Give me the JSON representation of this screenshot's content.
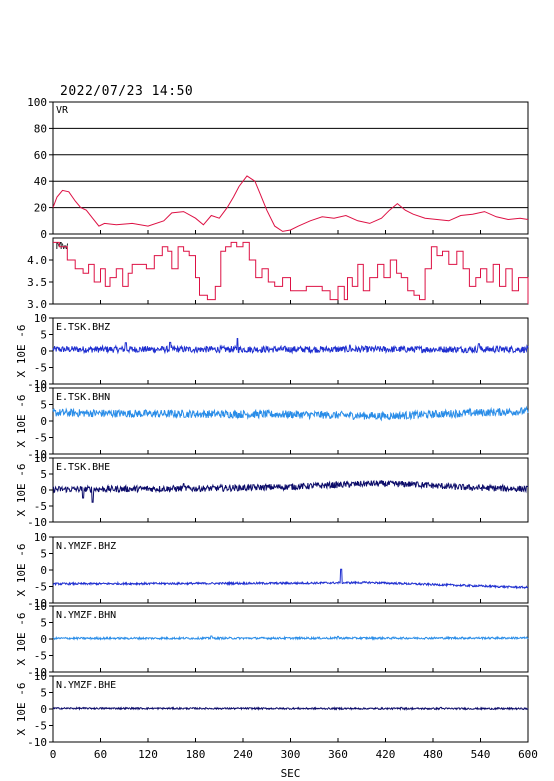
{
  "title": "2022/07/23 14:50",
  "xlabel": "SEC",
  "x_ticks": [
    0,
    60,
    120,
    180,
    240,
    300,
    360,
    420,
    480,
    540,
    600
  ],
  "colors": {
    "vr": "#dd1144",
    "mw": "#dd1144",
    "bhz": "#1f2fd0",
    "bhn": "#2a8de8",
    "bhe": "#0d0d6a",
    "frame": "#000000"
  },
  "chart_data": [
    {
      "type": "line",
      "name": "VR",
      "ylim": [
        0,
        100
      ],
      "y_ticks": [
        0,
        20,
        40,
        60,
        80,
        100
      ],
      "grid": true,
      "x": [
        0,
        5,
        12,
        20,
        28,
        35,
        42,
        50,
        58,
        65,
        80,
        100,
        120,
        140,
        150,
        165,
        180,
        190,
        200,
        210,
        220,
        228,
        235,
        240,
        245,
        255,
        262,
        270,
        280,
        290,
        300,
        310,
        325,
        340,
        355,
        370,
        385,
        400,
        415,
        425,
        435,
        445,
        455,
        470,
        485,
        500,
        515,
        530,
        545,
        560,
        575,
        590,
        600
      ],
      "values": [
        20,
        28,
        33,
        32,
        25,
        20,
        18,
        12,
        6,
        8,
        7,
        8,
        6,
        10,
        16,
        17,
        12,
        7,
        14,
        12,
        20,
        28,
        36,
        40,
        44,
        40,
        30,
        18,
        6,
        2,
        3,
        6,
        10,
        13,
        12,
        14,
        10,
        8,
        12,
        18,
        23,
        18,
        15,
        12,
        11,
        10,
        14,
        15,
        17,
        13,
        11,
        12,
        11
      ]
    },
    {
      "type": "line",
      "name": "Mw",
      "ylim": [
        3.0,
        4.5
      ],
      "y_ticks": [
        3.0,
        3.5,
        4.0
      ],
      "x": [
        0,
        8,
        18,
        28,
        38,
        45,
        52,
        60,
        66,
        72,
        80,
        88,
        95,
        100,
        110,
        118,
        128,
        138,
        145,
        150,
        158,
        165,
        172,
        180,
        185,
        195,
        205,
        212,
        218,
        225,
        232,
        240,
        248,
        256,
        264,
        272,
        280,
        290,
        300,
        310,
        320,
        330,
        340,
        350,
        360,
        368,
        372,
        378,
        385,
        392,
        400,
        410,
        418,
        426,
        434,
        440,
        448,
        456,
        463,
        470,
        478,
        485,
        492,
        500,
        510,
        518,
        526,
        534,
        540,
        548,
        556,
        564,
        572,
        580,
        588,
        600
      ],
      "values": [
        4.4,
        4.3,
        4.0,
        3.8,
        3.7,
        3.9,
        3.5,
        3.8,
        3.4,
        3.6,
        3.8,
        3.4,
        3.7,
        3.9,
        3.9,
        3.8,
        4.1,
        4.3,
        4.2,
        3.8,
        4.3,
        4.2,
        4.1,
        3.6,
        3.2,
        3.1,
        3.4,
        4.2,
        4.3,
        4.4,
        4.3,
        4.4,
        4.0,
        3.6,
        3.8,
        3.5,
        3.4,
        3.6,
        3.3,
        3.3,
        3.4,
        3.4,
        3.3,
        3.1,
        3.4,
        3.1,
        3.6,
        3.4,
        3.9,
        3.3,
        3.6,
        3.9,
        3.6,
        4.0,
        3.7,
        3.6,
        3.3,
        3.2,
        3.1,
        3.8,
        4.3,
        4.1,
        4.2,
        3.9,
        4.2,
        3.8,
        3.4,
        3.6,
        3.8,
        3.5,
        3.9,
        3.4,
        3.8,
        3.3,
        3.6,
        3.0
      ]
    },
    {
      "type": "line",
      "name": "E.TSK.BHZ",
      "ylabel": "X 10E -6",
      "ylim": [
        -10,
        10
      ],
      "y_ticks": [
        -10,
        -5,
        0,
        5,
        10
      ],
      "baseline": [
        [
          0,
          0.5
        ],
        [
          600,
          0.5
        ]
      ],
      "noise": 1.0,
      "spikes": [
        [
          92,
          2.5
        ],
        [
          148,
          2.6
        ],
        [
          233,
          3.8
        ],
        [
          375,
          1.8
        ],
        [
          538,
          2.2
        ]
      ]
    },
    {
      "type": "line",
      "name": "E.TSK.BHN",
      "ylabel": "X 10E -6",
      "ylim": [
        -10,
        10
      ],
      "y_ticks": [
        -10,
        -5,
        0,
        5,
        10
      ],
      "baseline": [
        [
          0,
          2.5
        ],
        [
          120,
          2.2
        ],
        [
          300,
          2.0
        ],
        [
          420,
          1.5
        ],
        [
          500,
          2.2
        ],
        [
          600,
          3.0
        ]
      ],
      "noise": 1.2,
      "spikes": []
    },
    {
      "type": "line",
      "name": "E.TSK.BHE",
      "ylabel": "X 10E -6",
      "ylim": [
        -10,
        10
      ],
      "y_ticks": [
        -10,
        -5,
        0,
        5,
        10
      ],
      "baseline": [
        [
          0,
          0.2
        ],
        [
          200,
          0.5
        ],
        [
          300,
          1.0
        ],
        [
          400,
          2.0
        ],
        [
          450,
          1.8
        ],
        [
          520,
          0.8
        ],
        [
          600,
          0.3
        ]
      ],
      "noise": 1.0,
      "spikes": [
        [
          38,
          -2.5
        ],
        [
          50,
          -3.8
        ],
        [
          165,
          2.0
        ],
        [
          460,
          2.5
        ]
      ]
    },
    {
      "type": "line",
      "name": "N.YMZF.BHZ",
      "ylabel": "X 10E -6",
      "ylim": [
        -10,
        10
      ],
      "y_ticks": [
        -10,
        -5,
        0,
        5,
        10
      ],
      "baseline": [
        [
          0,
          -4.2
        ],
        [
          300,
          -4.0
        ],
        [
          400,
          -3.8
        ],
        [
          600,
          -5.3
        ]
      ],
      "noise": 0.3,
      "spikes": [
        [
          364,
          0.2
        ]
      ]
    },
    {
      "type": "line",
      "name": "N.YMZF.BHN",
      "ylabel": "X 10E -6",
      "ylim": [
        -10,
        10
      ],
      "y_ticks": [
        -10,
        -5,
        0,
        5,
        10
      ],
      "baseline": [
        [
          0,
          0.2
        ],
        [
          600,
          0.3
        ]
      ],
      "noise": 0.3,
      "spikes": [
        [
          200,
          0.9
        ],
        [
          360,
          0.8
        ]
      ]
    },
    {
      "type": "line",
      "name": "N.YMZF.BHE",
      "ylabel": "X 10E -6",
      "ylim": [
        -10,
        10
      ],
      "y_ticks": [
        -10,
        -5,
        0,
        5,
        10
      ],
      "baseline": [
        [
          0,
          0.2
        ],
        [
          600,
          0.1
        ]
      ],
      "noise": 0.25,
      "spikes": [
        [
          440,
          0.5
        ],
        [
          490,
          0.5
        ]
      ]
    }
  ]
}
